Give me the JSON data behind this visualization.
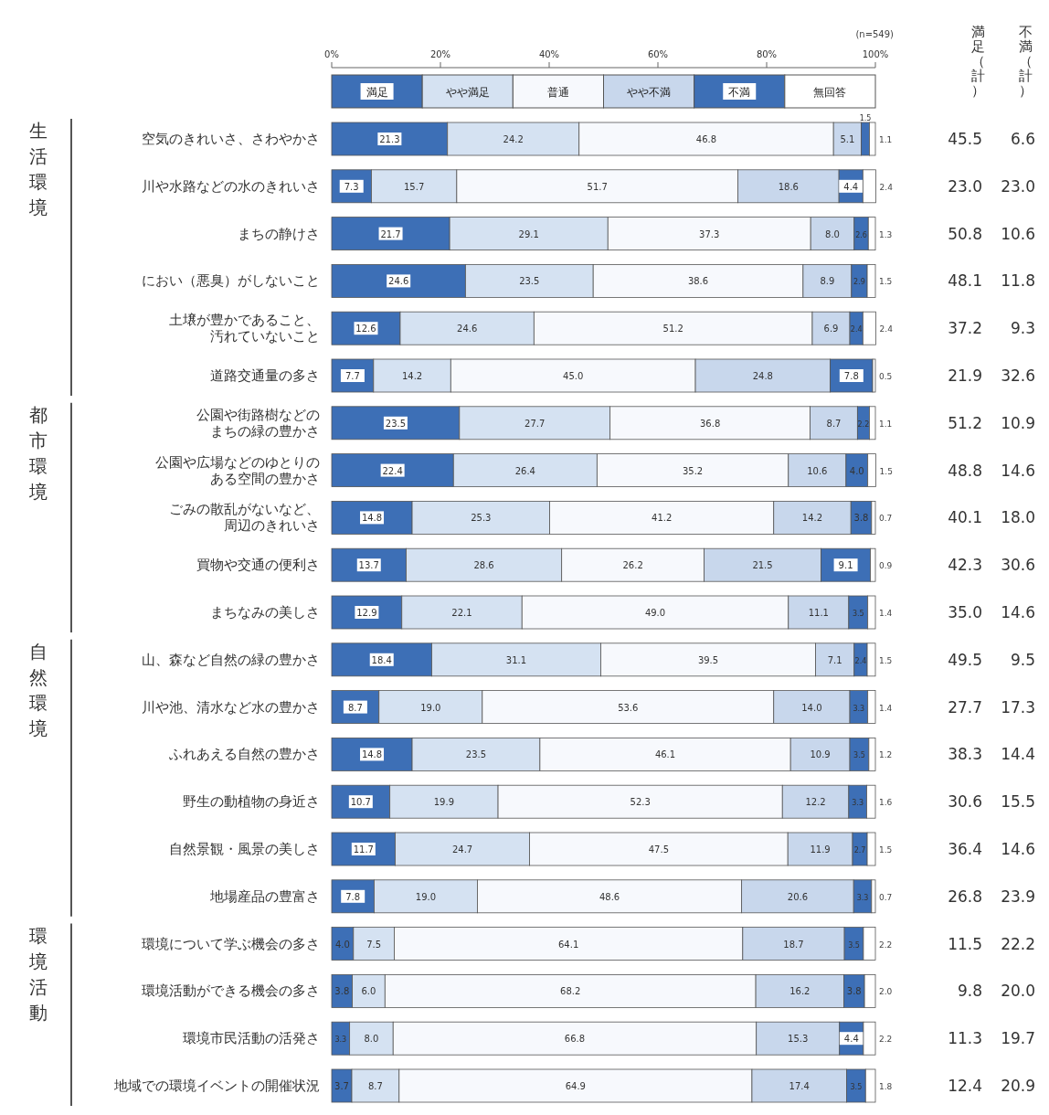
{
  "chart_data": {
    "type": "bar",
    "orientation": "horizontal",
    "stacked": true,
    "legend": "top",
    "categories": [
      "空気のきれいさ、さわやかさ",
      "川や水路などの水のきれいさ",
      "まちの静けさ",
      "におい（悪臭）がしないこと",
      "土壌が豊かであること、汚れていないこと",
      "道路交通量の多さ",
      "公園や街路樹などのまちの緑の豊かさ",
      "公園や広場などのゆとりのある空間の豊かさ",
      "ごみの散乱がないなど、周辺のきれいさ",
      "買物や交通の便利さ",
      "まちなみの美しさ",
      "山、森など自然の緑の豊かさ",
      "川や池、清水など水の豊かさ",
      "ふれあえる自然の豊かさ",
      "野生の動植物の身近さ",
      "自然景観・風景の美しさ",
      "地場産品の豊富さ",
      "環境について学ぶ機会の多さ",
      "環境活動ができる機会の多さ",
      "環境市民活動の活発さ",
      "地域での環境イベントの開催状況"
    ],
    "series": [
      {
        "name": "満足",
        "color": "#3d6fb6",
        "values": [
          21.3,
          7.3,
          21.7,
          24.6,
          12.6,
          7.7,
          23.5,
          22.4,
          14.8,
          13.7,
          12.9,
          18.4,
          8.7,
          14.8,
          10.7,
          11.7,
          7.8,
          4.0,
          3.8,
          3.3,
          3.7
        ],
        "value_labels": [
          "21.3",
          "7.3",
          "21.7",
          "24.6",
          "12.6",
          "7.7",
          "23.5",
          "22.4",
          "14.8",
          "13.7",
          "12.9",
          "18.4",
          "8.7",
          "14.8",
          "10.7",
          "11.7",
          "7.8",
          "4.0",
          "3.8",
          "3.3",
          "3.7"
        ]
      },
      {
        "name": "やや満足",
        "color": "#d5e2f2",
        "values": [
          24.2,
          15.7,
          29.1,
          23.5,
          24.6,
          14.2,
          27.7,
          26.4,
          25.3,
          28.6,
          22.1,
          31.1,
          19.0,
          23.5,
          19.9,
          24.7,
          19.0,
          7.5,
          6.0,
          8.0,
          8.7
        ],
        "value_labels": [
          "24.2",
          "15.7",
          "29.1",
          "23.5",
          "24.6",
          "14.2",
          "27.7",
          "26.4",
          "25.3",
          "28.6",
          "22.1",
          "31.1",
          "19.0",
          "23.5",
          "19.9",
          "24.7",
          "19.0",
          "7.5",
          "6.0",
          "8.0",
          "8.7"
        ]
      },
      {
        "name": "普通",
        "color": "#f7f9fd",
        "values": [
          46.8,
          51.7,
          37.3,
          38.6,
          51.2,
          45.0,
          36.8,
          35.2,
          41.2,
          26.2,
          49.0,
          39.5,
          53.6,
          46.1,
          52.3,
          47.5,
          48.6,
          64.1,
          68.2,
          66.8,
          64.9
        ],
        "value_labels": [
          "46.8",
          "51.7",
          "37.3",
          "38.6",
          "51.2",
          "45.0",
          "36.8",
          "35.2",
          "41.2",
          "26.2",
          "49.0",
          "39.5",
          "53.6",
          "46.1",
          "52.3",
          "47.5",
          "48.6",
          "64.1",
          "68.2",
          "66.8",
          "64.9"
        ]
      },
      {
        "name": "やや不満",
        "color": "#c8d7ec",
        "values": [
          5.1,
          18.6,
          8.0,
          8.9,
          6.9,
          24.8,
          8.7,
          10.6,
          14.2,
          21.5,
          11.1,
          7.1,
          14.0,
          10.9,
          12.2,
          11.9,
          20.6,
          18.7,
          16.2,
          15.3,
          17.4
        ],
        "value_labels": [
          "5.1",
          "18.6",
          "8.0",
          "8.9",
          "6.9",
          "24.8",
          "8.7",
          "10.6",
          "14.2",
          "21.5",
          "11.1",
          "7.1",
          "14.0",
          "10.9",
          "12.2",
          "11.9",
          "20.6",
          "18.7",
          "16.2",
          "15.3",
          "17.4"
        ]
      },
      {
        "name": "不満",
        "color": "#3d6fb6",
        "values": [
          1.5,
          4.4,
          2.6,
          2.9,
          2.4,
          7.8,
          2.2,
          4.0,
          3.8,
          9.1,
          3.5,
          2.4,
          3.3,
          3.5,
          3.3,
          2.7,
          3.3,
          3.5,
          3.8,
          4.4,
          3.5
        ],
        "value_labels": [
          "1.5",
          "4.4",
          "2.6",
          "2.9",
          "2.4",
          "7.8",
          "2.2",
          "4.0",
          "3.8",
          "9.1",
          "3.5",
          "2.4",
          "3.3",
          "3.5",
          "3.3",
          "2.7",
          "3.3",
          "3.5",
          "3.8",
          "4.4",
          "3.5"
        ]
      },
      {
        "name": "無回答",
        "color": "#ffffff",
        "values": [
          1.1,
          2.4,
          1.3,
          1.5,
          2.4,
          0.5,
          1.1,
          1.5,
          0.7,
          0.9,
          1.4,
          1.5,
          1.4,
          1.2,
          1.6,
          1.5,
          0.7,
          2.2,
          2.0,
          2.2,
          1.8
        ],
        "value_labels": [
          "1.1",
          "2.4",
          "1.3",
          "1.5",
          "2.4",
          "0.5",
          "1.1",
          "1.5",
          "0.7",
          "0.9",
          "1.4",
          "1.5",
          "1.4",
          "1.2",
          "1.6",
          "1.5",
          "0.7",
          "2.2",
          "2.0",
          "2.2",
          "1.8"
        ]
      }
    ],
    "xlim": [
      0,
      100
    ],
    "xticks": [
      {
        "value": 0,
        "label": "0%"
      },
      {
        "value": 20,
        "label": "20%"
      },
      {
        "value": 40,
        "label": "40%"
      },
      {
        "value": 60,
        "label": "60%"
      },
      {
        "value": 80,
        "label": "80%"
      },
      {
        "value": 100,
        "label": "100%"
      }
    ],
    "annotations": [
      "(n=549)",
      "満足（計）",
      "不満（計）",
      "生活環境",
      "都市環境",
      "自然環境",
      "環境活動",
      "45.5",
      "6.6",
      "23.0",
      "23.0",
      "50.8",
      "10.6",
      "48.1",
      "11.8",
      "37.2",
      "9.3",
      "21.9",
      "32.6",
      "51.2",
      "10.9",
      "48.8",
      "14.6",
      "40.1",
      "18.0",
      "42.3",
      "30.6",
      "35.0",
      "14.6",
      "49.5",
      "9.5",
      "27.7",
      "17.3",
      "38.3",
      "14.4",
      "30.6",
      "15.5",
      "36.4",
      "14.6",
      "26.8",
      "23.9",
      "11.5",
      "22.2",
      "9.8",
      "20.0",
      "11.3",
      "19.7",
      "12.4",
      "20.9"
    ]
  }
}
